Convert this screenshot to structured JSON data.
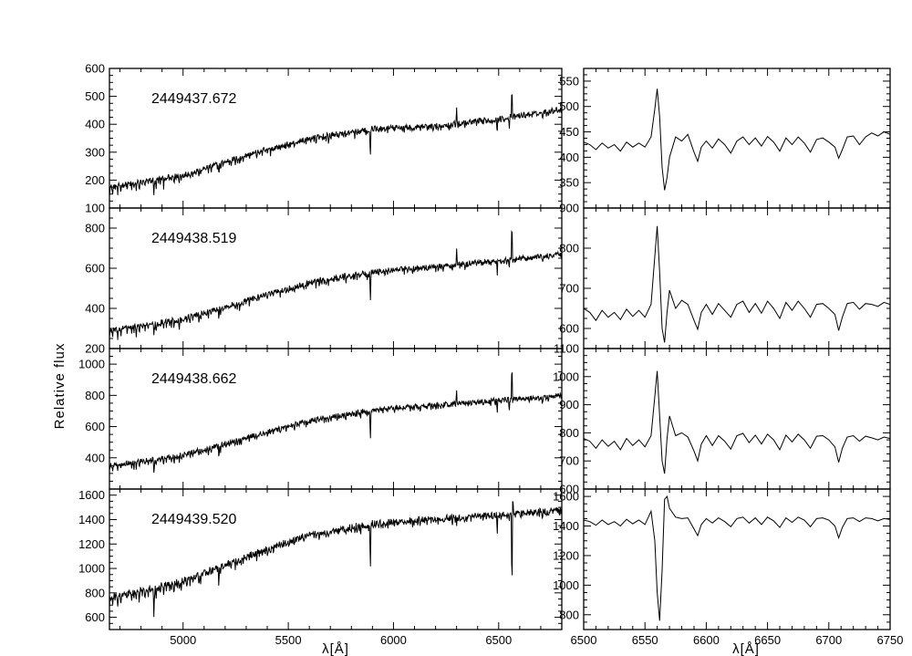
{
  "figure": {
    "ylabel": "Relative flux",
    "xlabel": "λ[Å]"
  },
  "chart_data": [
    {
      "type": "line",
      "panel": "left",
      "row": 0,
      "annotation": "2449437.672",
      "xlim": [
        4650,
        6800
      ],
      "ylim": [
        100,
        600
      ],
      "xticks": [
        5000,
        5500,
        6000,
        6500
      ],
      "yticks": [
        100,
        200,
        300,
        400,
        500,
        600
      ],
      "xlabel": "",
      "ylabel": "",
      "grid": false,
      "continuum": {
        "x": [
          4650,
          5000,
          5300,
          5600,
          5900,
          6200,
          6500,
          6800
        ],
        "y": [
          175,
          220,
          290,
          350,
          385,
          395,
          420,
          455
        ]
      },
      "lines": [
        {
          "x": 4861,
          "depth": -50
        },
        {
          "x": 5170,
          "depth": -45
        },
        {
          "x": 5890,
          "depth": -110
        },
        {
          "x": 6300,
          "depth": 60
        },
        {
          "x": 6493,
          "depth": -40
        },
        {
          "x": 6550,
          "depth": -30
        },
        {
          "x": 6563,
          "depth": 110
        },
        {
          "x": 6708,
          "depth": -30
        }
      ],
      "noise": 16
    },
    {
      "type": "line",
      "panel": "left",
      "row": 1,
      "annotation": "2449438.519",
      "xlim": [
        4650,
        6800
      ],
      "ylim": [
        200,
        900
      ],
      "xticks": [
        5000,
        5500,
        6000,
        6500
      ],
      "yticks": [
        200,
        400,
        600,
        800
      ],
      "xlabel": "",
      "ylabel": "",
      "grid": false,
      "continuum": {
        "x": [
          4650,
          5000,
          5300,
          5600,
          5900,
          6200,
          6500,
          6800
        ],
        "y": [
          290,
          350,
          440,
          530,
          585,
          610,
          640,
          670
        ]
      },
      "lines": [
        {
          "x": 4861,
          "depth": -70
        },
        {
          "x": 5170,
          "depth": -70
        },
        {
          "x": 5890,
          "depth": -150
        },
        {
          "x": 6300,
          "depth": 80
        },
        {
          "x": 6493,
          "depth": -60
        },
        {
          "x": 6550,
          "depth": -40
        },
        {
          "x": 6563,
          "depth": 200
        },
        {
          "x": 6708,
          "depth": -40
        }
      ],
      "noise": 22
    },
    {
      "type": "line",
      "panel": "left",
      "row": 2,
      "annotation": "2449438.662",
      "xlim": [
        4650,
        6800
      ],
      "ylim": [
        200,
        1100
      ],
      "xticks": [
        5000,
        5500,
        6000,
        6500
      ],
      "yticks": [
        400,
        600,
        800,
        1000
      ],
      "xlabel": "",
      "ylabel": "",
      "grid": false,
      "continuum": {
        "x": [
          4650,
          5000,
          5300,
          5600,
          5900,
          6200,
          6500,
          6800
        ],
        "y": [
          350,
          420,
          530,
          640,
          710,
          740,
          770,
          800
        ]
      },
      "lines": [
        {
          "x": 4861,
          "depth": -90
        },
        {
          "x": 5170,
          "depth": -90
        },
        {
          "x": 5890,
          "depth": -210
        },
        {
          "x": 6300,
          "depth": 80
        },
        {
          "x": 6493,
          "depth": -80
        },
        {
          "x": 6550,
          "depth": -60
        },
        {
          "x": 6563,
          "depth": 230
        },
        {
          "x": 6708,
          "depth": -50
        }
      ],
      "noise": 26
    },
    {
      "type": "line",
      "panel": "left",
      "row": 3,
      "annotation": "2449439.520",
      "xlim": [
        4650,
        6800
      ],
      "ylim": [
        500,
        1650
      ],
      "xticks": [
        5000,
        5500,
        6000,
        6500
      ],
      "xticklabels": [
        "5000",
        "5500",
        "6000",
        "6500"
      ],
      "yticks": [
        600,
        800,
        1000,
        1200,
        1400,
        1600
      ],
      "xlabel": "",
      "ylabel": "",
      "grid": false,
      "continuum": {
        "x": [
          4650,
          5000,
          5300,
          5600,
          5900,
          6200,
          6500,
          6800
        ],
        "y": [
          760,
          900,
          1100,
          1280,
          1370,
          1410,
          1440,
          1480
        ]
      },
      "lines": [
        {
          "x": 4861,
          "depth": -230
        },
        {
          "x": 5170,
          "depth": -180
        },
        {
          "x": 5890,
          "depth": -430
        },
        {
          "x": 6300,
          "depth": -80
        },
        {
          "x": 6493,
          "depth": -130
        },
        {
          "x": 6563,
          "depth": -700
        },
        {
          "x": 6567,
          "depth": 180
        },
        {
          "x": 6708,
          "depth": -80
        }
      ],
      "noise": 45
    },
    {
      "type": "line",
      "panel": "right",
      "row": 0,
      "xlim": [
        6500,
        6750
      ],
      "ylim": [
        300,
        575
      ],
      "xticks": [
        6500,
        6550,
        6600,
        6650,
        6700,
        6750
      ],
      "yticks": [
        350,
        400,
        450,
        500,
        550
      ],
      "xlabel": "",
      "ylabel": "",
      "grid": false,
      "x": [
        6500,
        6505,
        6510,
        6515,
        6520,
        6525,
        6530,
        6535,
        6540,
        6545,
        6550,
        6555,
        6558,
        6560,
        6562,
        6564,
        6566,
        6568,
        6570,
        6575,
        6580,
        6585,
        6590,
        6593,
        6596,
        6600,
        6605,
        6610,
        6615,
        6620,
        6625,
        6630,
        6635,
        6640,
        6645,
        6650,
        6655,
        6660,
        6665,
        6670,
        6675,
        6680,
        6685,
        6690,
        6695,
        6700,
        6705,
        6708,
        6711,
        6715,
        6720,
        6725,
        6730,
        6735,
        6740,
        6745,
        6750
      ],
      "y": [
        430,
        425,
        415,
        428,
        418,
        425,
        412,
        430,
        420,
        428,
        420,
        440,
        495,
        535,
        480,
        380,
        335,
        360,
        400,
        440,
        432,
        445,
        410,
        392,
        420,
        432,
        418,
        436,
        425,
        408,
        432,
        440,
        425,
        438,
        422,
        441,
        430,
        412,
        438,
        425,
        440,
        428,
        410,
        435,
        438,
        430,
        420,
        398,
        415,
        440,
        442,
        425,
        440,
        448,
        442,
        450,
        445
      ]
    },
    {
      "type": "line",
      "panel": "right",
      "row": 1,
      "xlim": [
        6500,
        6750
      ],
      "ylim": [
        550,
        900
      ],
      "xticks": [
        6500,
        6550,
        6600,
        6650,
        6700,
        6750
      ],
      "yticks": [
        600,
        700,
        800,
        900
      ],
      "xlabel": "",
      "ylabel": "",
      "grid": false,
      "x": [
        6500,
        6505,
        6510,
        6515,
        6520,
        6525,
        6530,
        6535,
        6540,
        6545,
        6550,
        6555,
        6558,
        6560,
        6562,
        6564,
        6566,
        6568,
        6570,
        6575,
        6580,
        6585,
        6590,
        6593,
        6596,
        6600,
        6605,
        6610,
        6615,
        6620,
        6625,
        6630,
        6635,
        6640,
        6645,
        6650,
        6655,
        6660,
        6665,
        6670,
        6675,
        6680,
        6685,
        6690,
        6695,
        6700,
        6705,
        6708,
        6711,
        6715,
        6720,
        6725,
        6730,
        6735,
        6740,
        6745,
        6750
      ],
      "y": [
        650,
        640,
        620,
        645,
        628,
        640,
        622,
        648,
        630,
        645,
        628,
        660,
        780,
        855,
        740,
        600,
        565,
        640,
        695,
        650,
        670,
        660,
        620,
        598,
        640,
        660,
        635,
        662,
        645,
        628,
        660,
        668,
        640,
        662,
        638,
        668,
        650,
        625,
        665,
        645,
        668,
        650,
        628,
        660,
        662,
        650,
        635,
        595,
        628,
        662,
        665,
        648,
        662,
        660,
        655,
        665,
        660
      ]
    },
    {
      "type": "line",
      "panel": "right",
      "row": 2,
      "xlim": [
        6500,
        6750
      ],
      "ylim": [
        600,
        1100
      ],
      "xticks": [
        6500,
        6550,
        6600,
        6650,
        6700,
        6750
      ],
      "yticks": [
        600,
        700,
        800,
        900,
        1000,
        1100
      ],
      "xlabel": "",
      "ylabel": "",
      "grid": false,
      "x": [
        6500,
        6505,
        6510,
        6515,
        6520,
        6525,
        6530,
        6535,
        6540,
        6545,
        6550,
        6555,
        6558,
        6560,
        6562,
        6564,
        6566,
        6568,
        6570,
        6575,
        6580,
        6585,
        6590,
        6593,
        6596,
        6600,
        6605,
        6610,
        6615,
        6620,
        6625,
        6630,
        6635,
        6640,
        6645,
        6650,
        6655,
        6660,
        6665,
        6670,
        6675,
        6680,
        6685,
        6690,
        6695,
        6700,
        6705,
        6708,
        6711,
        6715,
        6720,
        6725,
        6730,
        6735,
        6740,
        6745,
        6750
      ],
      "y": [
        780,
        770,
        745,
        775,
        752,
        770,
        740,
        780,
        755,
        775,
        750,
        790,
        930,
        1020,
        860,
        700,
        655,
        780,
        860,
        790,
        800,
        785,
        735,
        700,
        760,
        790,
        755,
        790,
        770,
        742,
        790,
        798,
        765,
        792,
        760,
        795,
        775,
        740,
        792,
        768,
        795,
        775,
        745,
        788,
        790,
        775,
        750,
        695,
        745,
        785,
        790,
        770,
        788,
        782,
        775,
        785,
        780
      ]
    },
    {
      "type": "line",
      "panel": "right",
      "row": 3,
      "xlim": [
        6500,
        6750
      ],
      "ylim": [
        700,
        1650
      ],
      "xticks": [
        6500,
        6550,
        6600,
        6650,
        6700,
        6750
      ],
      "xticklabels": [
        "6500",
        "6550",
        "6600",
        "6650",
        "6700",
        "6750"
      ],
      "yticks": [
        800,
        1000,
        1200,
        1400,
        1600
      ],
      "xlabel": "",
      "ylabel": "",
      "grid": false,
      "x": [
        6500,
        6505,
        6510,
        6515,
        6520,
        6525,
        6530,
        6535,
        6540,
        6545,
        6550,
        6555,
        6558,
        6560,
        6562,
        6564,
        6566,
        6568,
        6570,
        6575,
        6580,
        6585,
        6590,
        6593,
        6596,
        6600,
        6605,
        6610,
        6615,
        6620,
        6625,
        6630,
        6635,
        6640,
        6645,
        6650,
        6655,
        6660,
        6665,
        6670,
        6675,
        6680,
        6685,
        6690,
        6695,
        6700,
        6705,
        6708,
        6711,
        6715,
        6720,
        6725,
        6730,
        6735,
        6740,
        6745,
        6750
      ],
      "y": [
        1440,
        1430,
        1405,
        1440,
        1410,
        1430,
        1400,
        1445,
        1415,
        1440,
        1410,
        1500,
        1300,
        950,
        760,
        1100,
        1580,
        1600,
        1520,
        1460,
        1450,
        1455,
        1380,
        1335,
        1410,
        1450,
        1420,
        1455,
        1430,
        1395,
        1450,
        1460,
        1420,
        1455,
        1410,
        1460,
        1435,
        1390,
        1455,
        1425,
        1460,
        1440,
        1395,
        1450,
        1455,
        1440,
        1400,
        1320,
        1390,
        1450,
        1455,
        1430,
        1455,
        1450,
        1435,
        1450,
        1445
      ]
    }
  ]
}
